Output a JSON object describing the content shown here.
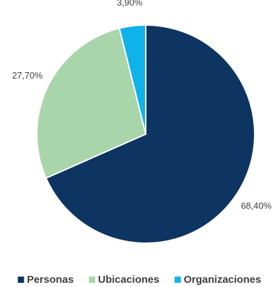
{
  "chart_data": {
    "type": "pie",
    "categories": [
      "Personas",
      "Ubicaciones",
      "Organizaciones"
    ],
    "values": [
      68.4,
      27.7,
      3.9
    ],
    "value_labels": [
      "68,40%",
      "27,70%",
      "3,90%"
    ],
    "colors": [
      "#0e3461",
      "#a8d5a9",
      "#0fb3ea"
    ],
    "legend": "bottom"
  }
}
